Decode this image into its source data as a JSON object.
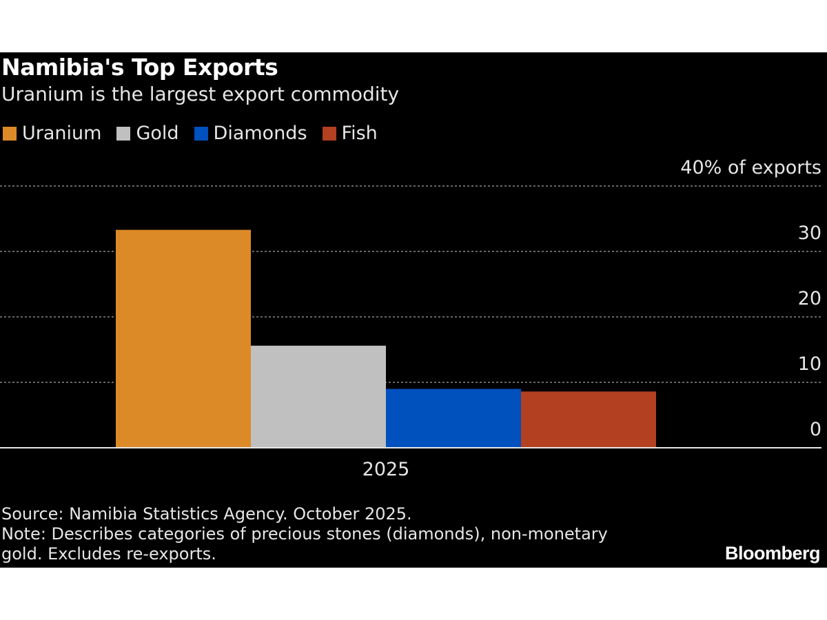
{
  "chart_data": {
    "type": "bar",
    "title": "Namibia's Top Exports",
    "subtitle": "Uranium is the largest export commodity",
    "categories": [
      "2025"
    ],
    "series": [
      {
        "name": "Uranium",
        "values": [
          33.3
        ],
        "color": "#dc8a27"
      },
      {
        "name": "Gold",
        "values": [
          15.6
        ],
        "color": "#c0c0c0"
      },
      {
        "name": "Diamonds",
        "values": [
          9.0
        ],
        "color": "#0050bd"
      },
      {
        "name": "Fish",
        "values": [
          8.6
        ],
        "color": "#b34020"
      }
    ],
    "ylim": [
      0,
      40
    ],
    "yticks": [
      0,
      10,
      20,
      30,
      40
    ],
    "ytick_labels": [
      "0",
      "10",
      "20",
      "30",
      "40% of exports"
    ],
    "y_axis_position": "right",
    "grid": true,
    "legend_placement": "top-left",
    "xlabel": "",
    "ylabel": ""
  },
  "footer": {
    "source": "Source: Namibia Statistics Agency. October 2025.",
    "note_line1": "Note: Describes categories of precious stones (diamonds), non-monetary",
    "note_line2": "gold. Excludes re-exports.",
    "logo": "Bloomberg"
  }
}
